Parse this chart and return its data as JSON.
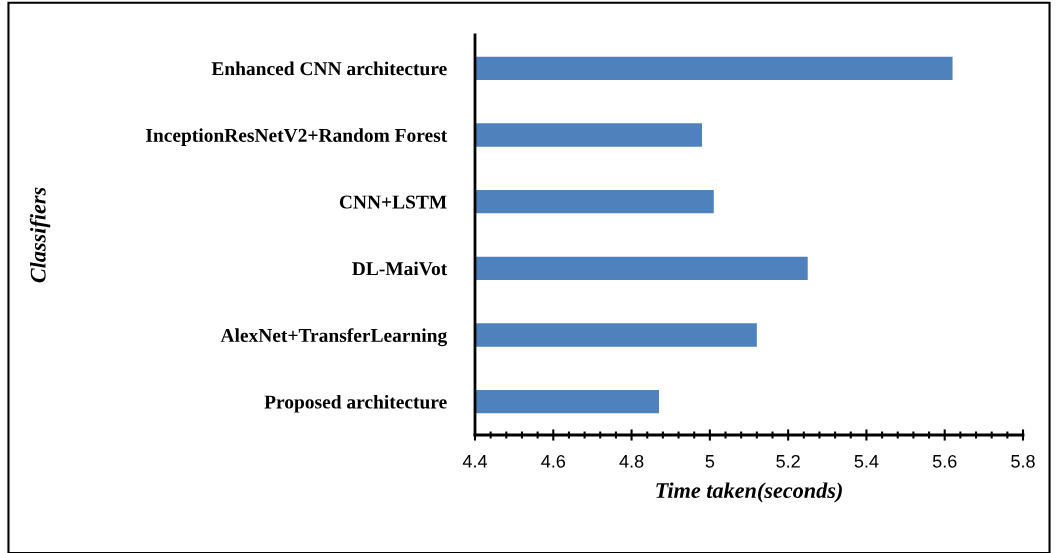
{
  "chart_data": {
    "type": "bar",
    "orientation": "horizontal",
    "categories": [
      "Enhanced CNN architecture",
      "InceptionResNetV2+Random Forest",
      "CNN+LSTM",
      "DL-MaiVot",
      "AlexNet+TransferLearning",
      "Proposed architecture"
    ],
    "values": [
      5.62,
      4.98,
      5.01,
      5.25,
      5.12,
      4.87
    ],
    "color": "#4f81bd",
    "xlim": [
      4.4,
      5.8
    ],
    "xticks": [
      4.4,
      4.6,
      4.8,
      5,
      5.2,
      5.4,
      5.6,
      5.8
    ],
    "xlabel": "Time taken(seconds)",
    "ylabel": "Classifiers",
    "grid": false,
    "legend": false
  }
}
